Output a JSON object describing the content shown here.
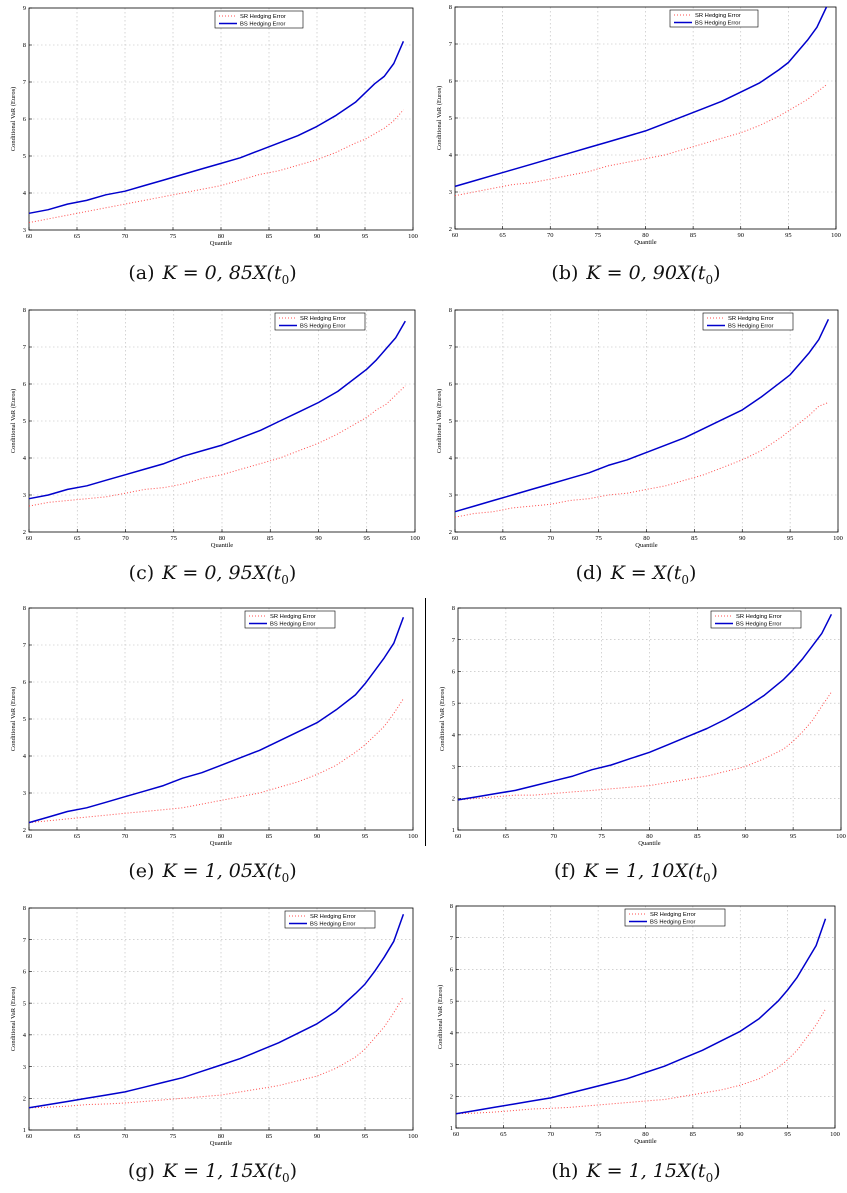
{
  "common": {
    "ylabel": "Conditional VaR (Euros)",
    "xlabel": "Quantile",
    "xticks": [
      "60",
      "65",
      "70",
      "75",
      "80",
      "85",
      "90",
      "95",
      "100"
    ],
    "quantiles": [
      60,
      62,
      64,
      66,
      68,
      70,
      72,
      74,
      76,
      78,
      80,
      82,
      84,
      86,
      88,
      90,
      92,
      94,
      95,
      96,
      97,
      98,
      99
    ],
    "series_names": [
      "SR Hedging Error",
      "BS Hedging Error"
    ],
    "colors": {
      "sr": "#ff4d4d",
      "bs": "#0000cc"
    }
  },
  "chart_data": [
    {
      "type": "line",
      "caption": {
        "letter": "(a)",
        "prefix": "K = 0, 85",
        "suffix": "X(t",
        "sub": "0",
        "close": ")"
      },
      "ylim": [
        3,
        9
      ],
      "yticks": [
        "3",
        "4",
        "5",
        "6",
        "7",
        "8",
        "9"
      ],
      "xlim": [
        60,
        100
      ],
      "grid": true,
      "legend": "top-center",
      "series": [
        {
          "name": "SR Hedging Error",
          "style": "dotted",
          "values": [
            3.2,
            3.3,
            3.4,
            3.5,
            3.6,
            3.7,
            3.8,
            3.9,
            4.0,
            4.1,
            4.2,
            4.35,
            4.5,
            4.6,
            4.75,
            4.9,
            5.1,
            5.35,
            5.45,
            5.6,
            5.75,
            5.95,
            6.25
          ]
        },
        {
          "name": "BS Hedging Error",
          "style": "solid",
          "values": [
            3.45,
            3.55,
            3.7,
            3.8,
            3.95,
            4.05,
            4.2,
            4.35,
            4.5,
            4.65,
            4.8,
            4.95,
            5.15,
            5.35,
            5.55,
            5.8,
            6.1,
            6.45,
            6.7,
            6.95,
            7.15,
            7.5,
            8.1
          ]
        }
      ]
    },
    {
      "type": "line",
      "caption": {
        "letter": "(b)",
        "prefix": "K = 0, 90",
        "suffix": "X(t",
        "sub": "0",
        "close": ")"
      },
      "ylim": [
        2,
        8
      ],
      "yticks": [
        "2",
        "3",
        "4",
        "5",
        "6",
        "7",
        "8"
      ],
      "xlim": [
        60,
        100
      ],
      "grid": true,
      "legend": "top-center",
      "series": [
        {
          "name": "SR Hedging Error",
          "style": "dotted",
          "values": [
            2.9,
            3.0,
            3.1,
            3.2,
            3.25,
            3.35,
            3.45,
            3.55,
            3.7,
            3.8,
            3.9,
            4.0,
            4.15,
            4.3,
            4.45,
            4.6,
            4.8,
            5.05,
            5.2,
            5.35,
            5.5,
            5.7,
            5.9
          ]
        },
        {
          "name": "BS Hedging Error",
          "style": "solid",
          "values": [
            3.15,
            3.3,
            3.45,
            3.6,
            3.75,
            3.9,
            4.05,
            4.2,
            4.35,
            4.5,
            4.65,
            4.85,
            5.05,
            5.25,
            5.45,
            5.7,
            5.95,
            6.3,
            6.5,
            6.8,
            7.1,
            7.45,
            8.0
          ]
        }
      ]
    },
    {
      "type": "line",
      "caption": {
        "letter": "(c)",
        "prefix": "K = 0, 95",
        "suffix": "X(t",
        "sub": "0",
        "close": ")"
      },
      "ylim": [
        2,
        8
      ],
      "yticks": [
        "2",
        "3",
        "4",
        "5",
        "6",
        "7",
        "8"
      ],
      "xlim": [
        60,
        100
      ],
      "grid": true,
      "legend": "top-right",
      "series": [
        {
          "name": "SR Hedging Error",
          "style": "dotted",
          "values": [
            2.7,
            2.8,
            2.85,
            2.9,
            2.95,
            3.05,
            3.15,
            3.2,
            3.3,
            3.45,
            3.55,
            3.7,
            3.85,
            4.0,
            4.2,
            4.4,
            4.65,
            4.95,
            5.1,
            5.3,
            5.45,
            5.7,
            5.95
          ]
        },
        {
          "name": "BS Hedging Error",
          "style": "solid",
          "values": [
            2.9,
            3.0,
            3.15,
            3.25,
            3.4,
            3.55,
            3.7,
            3.85,
            4.05,
            4.2,
            4.35,
            4.55,
            4.75,
            5.0,
            5.25,
            5.5,
            5.8,
            6.2,
            6.4,
            6.65,
            6.95,
            7.25,
            7.7
          ]
        }
      ]
    },
    {
      "type": "line",
      "caption": {
        "letter": "(d)",
        "prefix": "K = ",
        "suffix": "X(t",
        "sub": "0",
        "close": ")"
      },
      "ylim": [
        2,
        8
      ],
      "yticks": [
        "2",
        "3",
        "4",
        "5",
        "6",
        "7",
        "8"
      ],
      "xlim": [
        60,
        100
      ],
      "grid": true,
      "legend": "top-right",
      "series": [
        {
          "name": "SR Hedging Error",
          "style": "dotted",
          "values": [
            2.4,
            2.5,
            2.55,
            2.65,
            2.7,
            2.75,
            2.85,
            2.9,
            3.0,
            3.05,
            3.15,
            3.25,
            3.4,
            3.55,
            3.75,
            3.95,
            4.2,
            4.55,
            4.75,
            4.95,
            5.15,
            5.4,
            5.5
          ]
        },
        {
          "name": "BS Hedging Error",
          "style": "solid",
          "values": [
            2.55,
            2.7,
            2.85,
            3.0,
            3.15,
            3.3,
            3.45,
            3.6,
            3.8,
            3.95,
            4.15,
            4.35,
            4.55,
            4.8,
            5.05,
            5.3,
            5.65,
            6.05,
            6.25,
            6.55,
            6.85,
            7.2,
            7.75
          ]
        }
      ]
    },
    {
      "type": "line",
      "caption": {
        "letter": "(e)",
        "prefix": "K = 1, 05",
        "suffix": "X(t",
        "sub": "0",
        "close": ")"
      },
      "ylim": [
        2,
        8
      ],
      "yticks": [
        "2",
        "3",
        "4",
        "5",
        "6",
        "7",
        "8"
      ],
      "xlim": [
        60,
        100
      ],
      "grid": true,
      "legend": "top-center",
      "series": [
        {
          "name": "SR Hedging Error",
          "style": "dotted",
          "values": [
            2.2,
            2.25,
            2.3,
            2.35,
            2.4,
            2.45,
            2.5,
            2.55,
            2.6,
            2.7,
            2.8,
            2.9,
            3.0,
            3.15,
            3.3,
            3.5,
            3.75,
            4.1,
            4.3,
            4.55,
            4.8,
            5.15,
            5.55
          ]
        },
        {
          "name": "BS Hedging Error",
          "style": "solid",
          "values": [
            2.2,
            2.35,
            2.5,
            2.6,
            2.75,
            2.9,
            3.05,
            3.2,
            3.4,
            3.55,
            3.75,
            3.95,
            4.15,
            4.4,
            4.65,
            4.9,
            5.25,
            5.65,
            5.95,
            6.3,
            6.65,
            7.05,
            7.75
          ]
        }
      ]
    },
    {
      "type": "line",
      "caption": {
        "letter": "(f)",
        "prefix": "K = 1, 10",
        "suffix": "X(t",
        "sub": "0",
        "close": ")"
      },
      "ylim": [
        1,
        8
      ],
      "yticks": [
        "1",
        "2",
        "3",
        "4",
        "5",
        "6",
        "7",
        "8"
      ],
      "xlim": [
        60,
        100
      ],
      "grid": true,
      "legend": "top-right",
      "series": [
        {
          "name": "SR Hedging Error",
          "style": "dotted",
          "values": [
            1.95,
            2.0,
            2.05,
            2.1,
            2.1,
            2.15,
            2.2,
            2.25,
            2.3,
            2.35,
            2.4,
            2.5,
            2.6,
            2.7,
            2.85,
            3.0,
            3.25,
            3.55,
            3.8,
            4.1,
            4.45,
            4.9,
            5.35
          ]
        },
        {
          "name": "BS Hedging Error",
          "style": "solid",
          "values": [
            1.95,
            2.05,
            2.15,
            2.25,
            2.4,
            2.55,
            2.7,
            2.9,
            3.05,
            3.25,
            3.45,
            3.7,
            3.95,
            4.2,
            4.5,
            4.85,
            5.25,
            5.75,
            6.05,
            6.4,
            6.8,
            7.2,
            7.8
          ]
        }
      ]
    },
    {
      "type": "line",
      "caption": {
        "letter": "(g)",
        "prefix": "K = 1, 15",
        "suffix": "X(t",
        "sub": "0",
        "close": ")"
      },
      "ylim": [
        1,
        8
      ],
      "yticks": [
        "1",
        "2",
        "3",
        "4",
        "5",
        "6",
        "7",
        "8"
      ],
      "xlim": [
        60,
        100
      ],
      "grid": true,
      "legend": "top-right",
      "series": [
        {
          "name": "SR Hedging Error",
          "style": "dotted",
          "values": [
            1.7,
            1.72,
            1.75,
            1.8,
            1.82,
            1.85,
            1.9,
            1.95,
            2.0,
            2.05,
            2.1,
            2.2,
            2.3,
            2.4,
            2.55,
            2.7,
            2.95,
            3.3,
            3.55,
            3.9,
            4.25,
            4.7,
            5.2
          ]
        },
        {
          "name": "BS Hedging Error",
          "style": "solid",
          "values": [
            1.7,
            1.8,
            1.9,
            2.0,
            2.1,
            2.2,
            2.35,
            2.5,
            2.65,
            2.85,
            3.05,
            3.25,
            3.5,
            3.75,
            4.05,
            4.35,
            4.75,
            5.3,
            5.6,
            6.0,
            6.45,
            6.95,
            7.8
          ]
        }
      ]
    },
    {
      "type": "line",
      "caption": {
        "letter": "(h)",
        "prefix": "K = 1, 15",
        "suffix": "X(t",
        "sub": "0",
        "close": ")"
      },
      "ylim": [
        1,
        8
      ],
      "yticks": [
        "1",
        "2",
        "3",
        "4",
        "5",
        "6",
        "7",
        "8"
      ],
      "xlim": [
        60,
        100
      ],
      "grid": true,
      "legend": "top-center",
      "series": [
        {
          "name": "SR Hedging Error",
          "style": "dotted",
          "values": [
            1.45,
            1.47,
            1.5,
            1.55,
            1.6,
            1.62,
            1.65,
            1.7,
            1.75,
            1.8,
            1.85,
            1.9,
            2.0,
            2.1,
            2.2,
            2.35,
            2.55,
            2.9,
            3.15,
            3.45,
            3.85,
            4.25,
            4.75
          ]
        },
        {
          "name": "BS Hedging Error",
          "style": "solid",
          "values": [
            1.45,
            1.55,
            1.65,
            1.75,
            1.85,
            1.95,
            2.1,
            2.25,
            2.4,
            2.55,
            2.75,
            2.95,
            3.2,
            3.45,
            3.75,
            4.05,
            4.45,
            5.0,
            5.35,
            5.75,
            6.25,
            6.75,
            7.6
          ]
        }
      ]
    }
  ]
}
